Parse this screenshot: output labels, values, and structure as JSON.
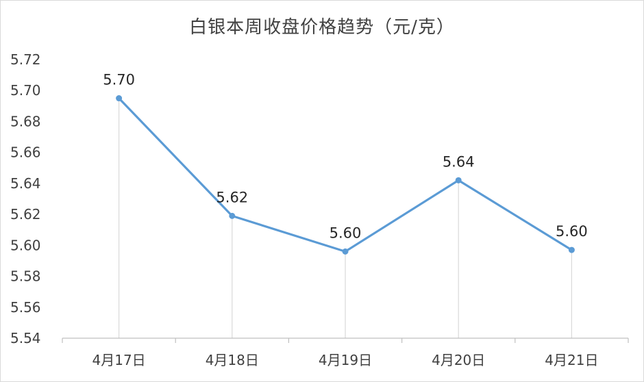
{
  "chart_data": {
    "type": "line",
    "title": "白银本周收盘价格趋势（元/克）",
    "categories": [
      "4月17日",
      "4月18日",
      "4月19日",
      "4月20日",
      "4月21日"
    ],
    "values": [
      5.695,
      5.619,
      5.596,
      5.642,
      5.597
    ],
    "data_labels": [
      "5.70",
      "5.62",
      "5.60",
      "5.64",
      "5.60"
    ],
    "ylim": [
      5.54,
      5.72
    ],
    "yticks": [
      "5.54",
      "5.56",
      "5.58",
      "5.60",
      "5.62",
      "5.64",
      "5.66",
      "5.68",
      "5.70",
      "5.72"
    ],
    "xlabel": "",
    "ylabel": "",
    "grid": false,
    "drop_lines": true,
    "legend": "none",
    "colors": {
      "line": "#5b9bd5",
      "marker": "#5b9bd5",
      "axis": "#bfbfbf",
      "drop_line": "#d9d9d9"
    }
  }
}
